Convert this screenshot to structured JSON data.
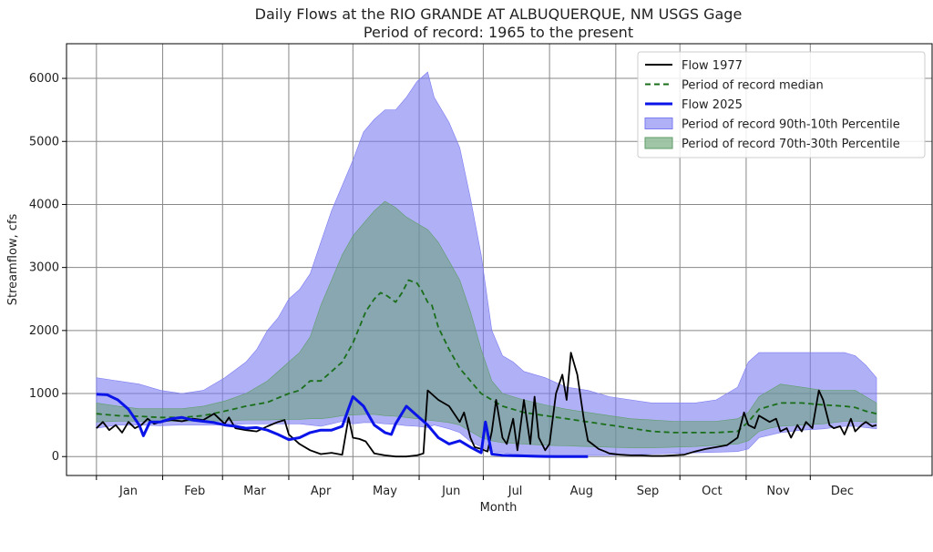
{
  "chart_data": {
    "type": "area",
    "title": "Daily Flows at the RIO GRANDE AT ALBUQUERQUE, NM USGS Gage",
    "subtitle": "Period of record: 1965 to the present",
    "xlabel": "Month",
    "ylabel": "Streamflow, cfs",
    "xlim": [
      -14,
      391
    ],
    "ylim": [
      -300,
      6550
    ],
    "grid": true,
    "legend_position": "top-right",
    "yticks": [
      0,
      1000,
      2000,
      3000,
      4000,
      5000,
      6000
    ],
    "month_ticks": [
      {
        "label": "Jan",
        "day": 15
      },
      {
        "label": "Feb",
        "day": 46
      },
      {
        "label": "Mar",
        "day": 74
      },
      {
        "label": "Apr",
        "day": 105
      },
      {
        "label": "May",
        "day": 135
      },
      {
        "label": "Jun",
        "day": 166
      },
      {
        "label": "Jul",
        "day": 196
      },
      {
        "label": "Aug",
        "day": 227
      },
      {
        "label": "Sep",
        "day": 258
      },
      {
        "label": "Oct",
        "day": 288
      },
      {
        "label": "Nov",
        "day": 319
      },
      {
        "label": "Dec",
        "day": 349
      }
    ],
    "month_boundaries": [
      0,
      31,
      59,
      90,
      120,
      151,
      181,
      212,
      243,
      273,
      304,
      334
    ],
    "colors": {
      "band90": "#7b7bf2",
      "band70": "#5f9e6a",
      "median": "#1a6e1a",
      "flow1977": "#000000",
      "flow2025": "#0a14e8"
    },
    "legend": [
      {
        "label": "Flow 1977",
        "kind": "line",
        "color": "#000000",
        "dash": ""
      },
      {
        "label": "Period of record median",
        "kind": "line",
        "color": "#1a6e1a",
        "dash": "6,4"
      },
      {
        "label": "Flow 2025",
        "kind": "line",
        "color": "#0a14e8",
        "dash": "",
        "width": 3
      },
      {
        "label": "Period of record 90th-10th Percentile",
        "kind": "box",
        "color": "#7b7bf2"
      },
      {
        "label": "Period of record 70th-30th Percentile",
        "kind": "box",
        "color": "#5f9e6a"
      }
    ],
    "series": [
      {
        "name": "Period of record 90th-10th Percentile",
        "x": [
          0,
          10,
          20,
          30,
          40,
          50,
          60,
          70,
          75,
          80,
          85,
          90,
          95,
          100,
          105,
          110,
          115,
          120,
          125,
          130,
          135,
          140,
          145,
          150,
          155,
          158,
          165,
          170,
          175,
          180,
          185,
          190,
          195,
          200,
          210,
          220,
          230,
          240,
          250,
          260,
          270,
          280,
          290,
          300,
          305,
          310,
          320,
          330,
          340,
          350,
          355,
          360,
          365
        ],
        "high": [
          1250,
          1200,
          1150,
          1050,
          1000,
          1050,
          1250,
          1500,
          1700,
          2000,
          2200,
          2500,
          2650,
          2900,
          3400,
          3900,
          4300,
          4700,
          5150,
          5350,
          5500,
          5500,
          5700,
          5950,
          6100,
          5700,
          5300,
          4900,
          4100,
          3200,
          2000,
          1600,
          1500,
          1350,
          1250,
          1100,
          1050,
          950,
          900,
          850,
          850,
          850,
          900,
          1100,
          1500,
          1650,
          1650,
          1650,
          1650,
          1650,
          1600,
          1450,
          1250
        ],
        "low": [
          450,
          500,
          500,
          490,
          500,
          500,
          500,
          520,
          520,
          520,
          520,
          520,
          520,
          500,
          480,
          520,
          560,
          520,
          540,
          540,
          520,
          510,
          490,
          480,
          460,
          500,
          440,
          380,
          240,
          150,
          80,
          60,
          40,
          30,
          20,
          20,
          20,
          20,
          30,
          40,
          50,
          60,
          70,
          80,
          120,
          300,
          380,
          420,
          440,
          480,
          480,
          460,
          440
        ]
      },
      {
        "name": "Period of record 70th-30th Percentile",
        "x": [
          0,
          10,
          20,
          30,
          40,
          50,
          60,
          70,
          80,
          90,
          95,
          100,
          105,
          110,
          115,
          120,
          125,
          130,
          135,
          140,
          145,
          150,
          155,
          160,
          165,
          170,
          175,
          180,
          185,
          190,
          200,
          210,
          220,
          230,
          240,
          250,
          260,
          270,
          280,
          290,
          300,
          305,
          310,
          315,
          320,
          330,
          340,
          350,
          355,
          360,
          365
        ],
        "high": [
          850,
          800,
          760,
          760,
          760,
          800,
          880,
          1000,
          1200,
          1500,
          1650,
          1900,
          2400,
          2800,
          3200,
          3500,
          3700,
          3900,
          4050,
          3950,
          3800,
          3700,
          3600,
          3400,
          3100,
          2800,
          2300,
          1700,
          1200,
          1000,
          900,
          820,
          750,
          700,
          650,
          600,
          580,
          560,
          560,
          560,
          600,
          700,
          950,
          1050,
          1150,
          1100,
          1050,
          1050,
          1050,
          950,
          850
        ],
        "low": [
          550,
          560,
          560,
          560,
          560,
          560,
          570,
          580,
          580,
          590,
          590,
          600,
          600,
          620,
          650,
          660,
          670,
          670,
          650,
          640,
          620,
          600,
          580,
          560,
          540,
          500,
          400,
          300,
          250,
          220,
          200,
          180,
          170,
          160,
          150,
          140,
          140,
          150,
          160,
          180,
          200,
          250,
          400,
          450,
          480,
          500,
          520,
          560,
          560,
          550,
          540
        ]
      },
      {
        "name": "Period of record median",
        "x": [
          0,
          10,
          20,
          30,
          40,
          50,
          60,
          70,
          80,
          90,
          95,
          100,
          105,
          110,
          115,
          120,
          123,
          126,
          130,
          133,
          136,
          140,
          143,
          146,
          150,
          152,
          155,
          157,
          160,
          165,
          170,
          175,
          180,
          185,
          190,
          200,
          210,
          220,
          230,
          240,
          250,
          260,
          270,
          280,
          290,
          300,
          305,
          310,
          315,
          320,
          330,
          340,
          350,
          355,
          360,
          365
        ],
        "y": [
          680,
          650,
          640,
          620,
          620,
          650,
          720,
          800,
          860,
          1000,
          1050,
          1200,
          1200,
          1350,
          1500,
          1800,
          2050,
          2300,
          2500,
          2600,
          2550,
          2450,
          2600,
          2800,
          2750,
          2650,
          2450,
          2400,
          2050,
          1700,
          1400,
          1200,
          1000,
          900,
          800,
          700,
          650,
          600,
          550,
          500,
          450,
          400,
          380,
          380,
          380,
          400,
          550,
          750,
          800,
          850,
          850,
          820,
          800,
          780,
          720,
          680
        ]
      },
      {
        "name": "Flow 1977",
        "x": [
          0,
          3,
          6,
          9,
          12,
          15,
          18,
          21,
          24,
          27,
          30,
          35,
          40,
          45,
          50,
          55,
          60,
          62,
          65,
          70,
          75,
          80,
          85,
          88,
          90,
          95,
          100,
          105,
          110,
          115,
          118,
          120,
          123,
          126,
          130,
          135,
          140,
          145,
          150,
          153,
          155,
          160,
          165,
          170,
          172,
          175,
          177,
          180,
          183,
          185,
          187,
          190,
          192,
          195,
          197,
          200,
          203,
          205,
          207,
          210,
          212,
          215,
          218,
          220,
          222,
          225,
          228,
          230,
          232,
          235,
          238,
          240,
          245,
          250,
          255,
          260,
          265,
          270,
          275,
          280,
          285,
          290,
          295,
          300,
          303,
          305,
          308,
          310,
          315,
          318,
          320,
          323,
          325,
          328,
          330,
          332,
          335,
          338,
          340,
          343,
          345,
          348,
          350,
          353,
          355,
          358,
          360,
          363,
          365
        ],
        "y": [
          450,
          550,
          420,
          500,
          380,
          550,
          450,
          500,
          600,
          520,
          550,
          580,
          560,
          600,
          580,
          680,
          520,
          620,
          450,
          420,
          400,
          480,
          550,
          580,
          350,
          200,
          100,
          40,
          60,
          30,
          620,
          300,
          280,
          240,
          50,
          20,
          0,
          0,
          20,
          50,
          1050,
          900,
          800,
          550,
          700,
          300,
          150,
          120,
          80,
          400,
          900,
          300,
          200,
          600,
          100,
          900,
          200,
          950,
          300,
          100,
          200,
          1000,
          1300,
          900,
          1650,
          1300,
          600,
          250,
          200,
          120,
          80,
          50,
          30,
          20,
          20,
          10,
          10,
          20,
          30,
          80,
          120,
          150,
          180,
          300,
          700,
          500,
          450,
          650,
          550,
          600,
          400,
          450,
          300,
          500,
          400,
          550,
          450,
          1050,
          900,
          500,
          450,
          480,
          350,
          600,
          400,
          500,
          550,
          480,
          500
        ]
      },
      {
        "name": "Flow 2025",
        "x": [
          0,
          5,
          10,
          15,
          20,
          22,
          25,
          30,
          35,
          40,
          45,
          50,
          55,
          60,
          65,
          70,
          75,
          80,
          85,
          90,
          95,
          100,
          105,
          110,
          115,
          120,
          125,
          130,
          135,
          138,
          140,
          145,
          150,
          155,
          160,
          165,
          170,
          175,
          180,
          182,
          185,
          188,
          190,
          195,
          200,
          205,
          210,
          215,
          220,
          225,
          230
        ],
        "y": [
          990,
          980,
          900,
          750,
          500,
          330,
          550,
          550,
          600,
          620,
          580,
          560,
          540,
          500,
          480,
          450,
          460,
          420,
          350,
          270,
          300,
          380,
          420,
          420,
          480,
          950,
          800,
          500,
          380,
          350,
          520,
          800,
          650,
          500,
          300,
          200,
          250,
          150,
          60,
          550,
          40,
          30,
          20,
          15,
          10,
          5,
          2,
          1,
          1,
          1,
          1
        ]
      }
    ]
  }
}
